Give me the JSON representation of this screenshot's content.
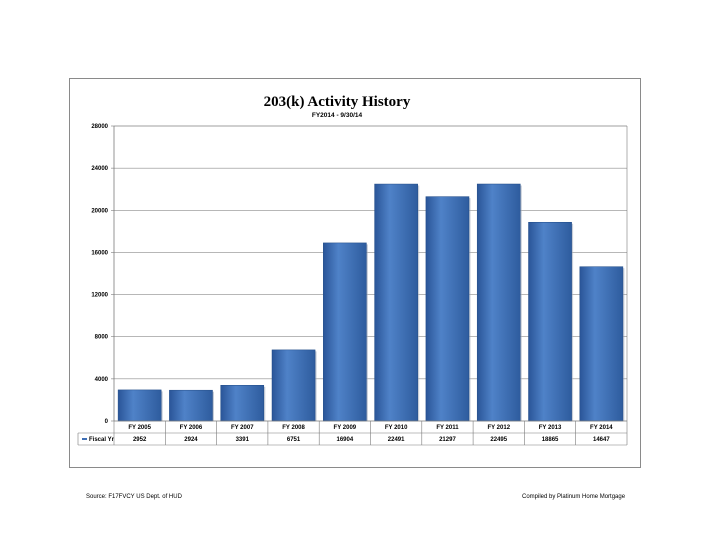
{
  "chart_data": {
    "type": "bar",
    "title": "203(k) Activity History",
    "subtitle": "FY2014 - 9/30/14",
    "xlabel": "",
    "ylabel": "",
    "ylim": [
      0,
      28000
    ],
    "yticks": [
      0,
      4000,
      8000,
      12000,
      16000,
      20000,
      24000,
      28000
    ],
    "grid": true,
    "legend": "none",
    "categories": [
      "FY 2005",
      "FY 2006",
      "FY 2007",
      "FY 2008",
      "FY 2009",
      "FY 2010",
      "FY 2011",
      "FY 2012",
      "FY 2013",
      "FY 2014"
    ],
    "series": [
      {
        "name": "Fiscal Yr",
        "values": [
          2952,
          2924,
          3391,
          6751,
          16904,
          22491,
          21297,
          22495,
          18865,
          14647
        ],
        "color": "#3f6fb5"
      }
    ],
    "data_table": true
  },
  "footer": {
    "source": "Source: F17FVCY US Dept. of HUD",
    "compiled_by": "Compiled by Platinum Home Mortgage"
  }
}
